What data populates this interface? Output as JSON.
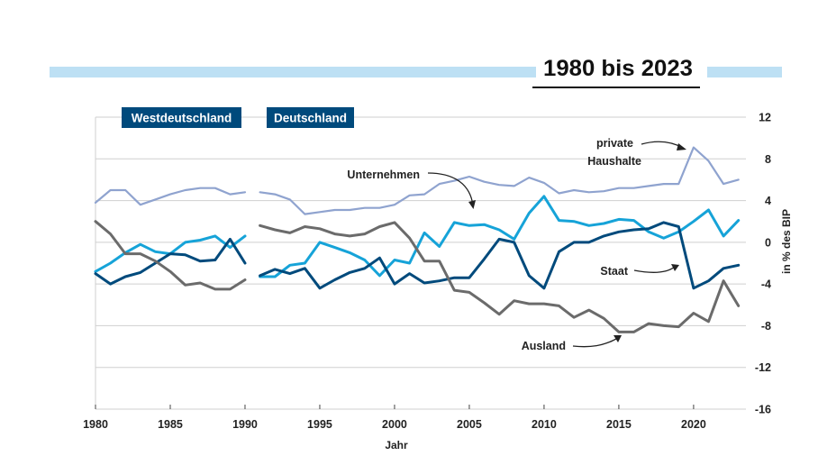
{
  "chart_data": {
    "type": "line",
    "title": "1980 bis 2023",
    "xlabel": "Jahr",
    "ylabel": "in % des BIP",
    "xlim": [
      1980,
      2023.5
    ],
    "ylim": [
      -16,
      12
    ],
    "x_ticks": [
      1980,
      1985,
      1990,
      1995,
      2000,
      2005,
      2010,
      2015,
      2020
    ],
    "y_ticks": [
      12,
      8,
      4,
      0,
      -4,
      -8,
      -12,
      -16
    ],
    "y_tick_labels": [
      "12",
      "8",
      "4",
      "0",
      "-4",
      "-8",
      "-12",
      "-16"
    ],
    "grid": true,
    "periods": [
      "Westdeutschland",
      "Deutschland"
    ],
    "annotations": {
      "unternehmen": "Unternehmen",
      "private_line1": "private",
      "private_line2": "Haushalte",
      "staat": "Staat",
      "ausland": "Ausland"
    },
    "series": [
      {
        "key": "private",
        "color": "#8fa3cf",
        "segments": [
          {
            "x": [
              1980,
              1981,
              1982,
              1983,
              1984,
              1985,
              1986,
              1987,
              1988,
              1989,
              1990
            ],
            "y": [
              3.8,
              5.0,
              5.0,
              3.6,
              4.1,
              4.6,
              5.0,
              5.2,
              5.2,
              4.6,
              4.8
            ]
          },
          {
            "x": [
              1991,
              1992,
              1993,
              1994,
              1995,
              1996,
              1997,
              1998,
              1999,
              2000,
              2001,
              2002,
              2003,
              2004,
              2005,
              2006,
              2007,
              2008,
              2009,
              2010,
              2011,
              2012,
              2013,
              2014,
              2015,
              2016,
              2017,
              2018,
              2019,
              2020,
              2021,
              2022,
              2023
            ],
            "y": [
              4.8,
              4.6,
              4.1,
              2.7,
              2.9,
              3.1,
              3.1,
              3.3,
              3.3,
              3.6,
              4.5,
              4.6,
              5.6,
              5.9,
              6.3,
              5.8,
              5.5,
              5.4,
              6.2,
              5.7,
              4.7,
              5.0,
              4.8,
              4.9,
              5.2,
              5.2,
              5.4,
              5.6,
              5.6,
              9.1,
              7.8,
              5.6,
              6.0
            ]
          }
        ]
      },
      {
        "key": "unternehmen",
        "color": "#16a3d8",
        "segments": [
          {
            "x": [
              1980,
              1981,
              1982,
              1983,
              1984,
              1985,
              1986,
              1987,
              1988,
              1989,
              1990
            ],
            "y": [
              -2.8,
              -2.0,
              -1.0,
              -0.2,
              -0.9,
              -1.1,
              0.0,
              0.2,
              0.6,
              -0.5,
              0.6
            ]
          },
          {
            "x": [
              1991,
              1992,
              1993,
              1994,
              1995,
              1996,
              1997,
              1998,
              1999,
              2000,
              2001,
              2002,
              2003,
              2004,
              2005,
              2006,
              2007,
              2008,
              2009,
              2010,
              2011,
              2012,
              2013,
              2014,
              2015,
              2016,
              2017,
              2018,
              2019,
              2020,
              2021,
              2022,
              2023
            ],
            "y": [
              -3.3,
              -3.3,
              -2.2,
              -2.0,
              0.0,
              -0.5,
              -1.0,
              -1.7,
              -3.2,
              -1.7,
              -2.0,
              0.9,
              -0.4,
              1.9,
              1.6,
              1.7,
              1.2,
              0.3,
              2.8,
              4.4,
              2.1,
              2.0,
              1.6,
              1.8,
              2.2,
              2.1,
              1.0,
              0.4,
              1.0,
              2.0,
              3.1,
              0.6,
              2.1
            ]
          }
        ]
      },
      {
        "key": "staat",
        "color": "#004a7c",
        "segments": [
          {
            "x": [
              1980,
              1981,
              1982,
              1983,
              1984,
              1985,
              1986,
              1987,
              1988,
              1989,
              1990
            ],
            "y": [
              -3.0,
              -4.0,
              -3.3,
              -2.9,
              -2.0,
              -1.1,
              -1.2,
              -1.8,
              -1.7,
              0.3,
              -2.0
            ]
          },
          {
            "x": [
              1991,
              1992,
              1993,
              1994,
              1995,
              1996,
              1997,
              1998,
              1999,
              2000,
              2001,
              2002,
              2003,
              2004,
              2005,
              2006,
              2007,
              2008,
              2009,
              2010,
              2011,
              2012,
              2013,
              2014,
              2015,
              2016,
              2017,
              2018,
              2019,
              2020,
              2021,
              2022,
              2023
            ],
            "y": [
              -3.2,
              -2.6,
              -3.0,
              -2.5,
              -4.4,
              -3.6,
              -2.9,
              -2.5,
              -1.5,
              -4.0,
              -3.0,
              -3.9,
              -3.7,
              -3.4,
              -3.4,
              -1.6,
              0.3,
              0.0,
              -3.2,
              -4.4,
              -0.9,
              0.0,
              0.0,
              0.6,
              1.0,
              1.2,
              1.3,
              1.9,
              1.5,
              -4.4,
              -3.7,
              -2.5,
              -2.2
            ]
          }
        ]
      },
      {
        "key": "ausland",
        "color": "#6b6b6b",
        "segments": [
          {
            "x": [
              1980,
              1981,
              1982,
              1983,
              1984,
              1985,
              1986,
              1987,
              1988,
              1989,
              1990
            ],
            "y": [
              2.0,
              0.8,
              -1.1,
              -1.1,
              -1.8,
              -2.8,
              -4.1,
              -3.9,
              -4.5,
              -4.5,
              -3.6
            ]
          },
          {
            "x": [
              1991,
              1992,
              1993,
              1994,
              1995,
              1996,
              1997,
              1998,
              1999,
              2000,
              2001,
              2002,
              2003,
              2004,
              2005,
              2006,
              2007,
              2008,
              2009,
              2010,
              2011,
              2012,
              2013,
              2014,
              2015,
              2016,
              2017,
              2018,
              2019,
              2020,
              2021,
              2022,
              2023
            ],
            "y": [
              1.6,
              1.2,
              0.9,
              1.5,
              1.3,
              0.8,
              0.6,
              0.8,
              1.5,
              1.9,
              0.4,
              -1.8,
              -1.8,
              -4.6,
              -4.8,
              -5.8,
              -6.9,
              -5.6,
              -5.9,
              -5.9,
              -6.1,
              -7.2,
              -6.5,
              -7.3,
              -8.6,
              -8.6,
              -7.8,
              -8.0,
              -8.1,
              -6.8,
              -7.6,
              -3.7,
              -6.1
            ]
          }
        ]
      }
    ]
  }
}
